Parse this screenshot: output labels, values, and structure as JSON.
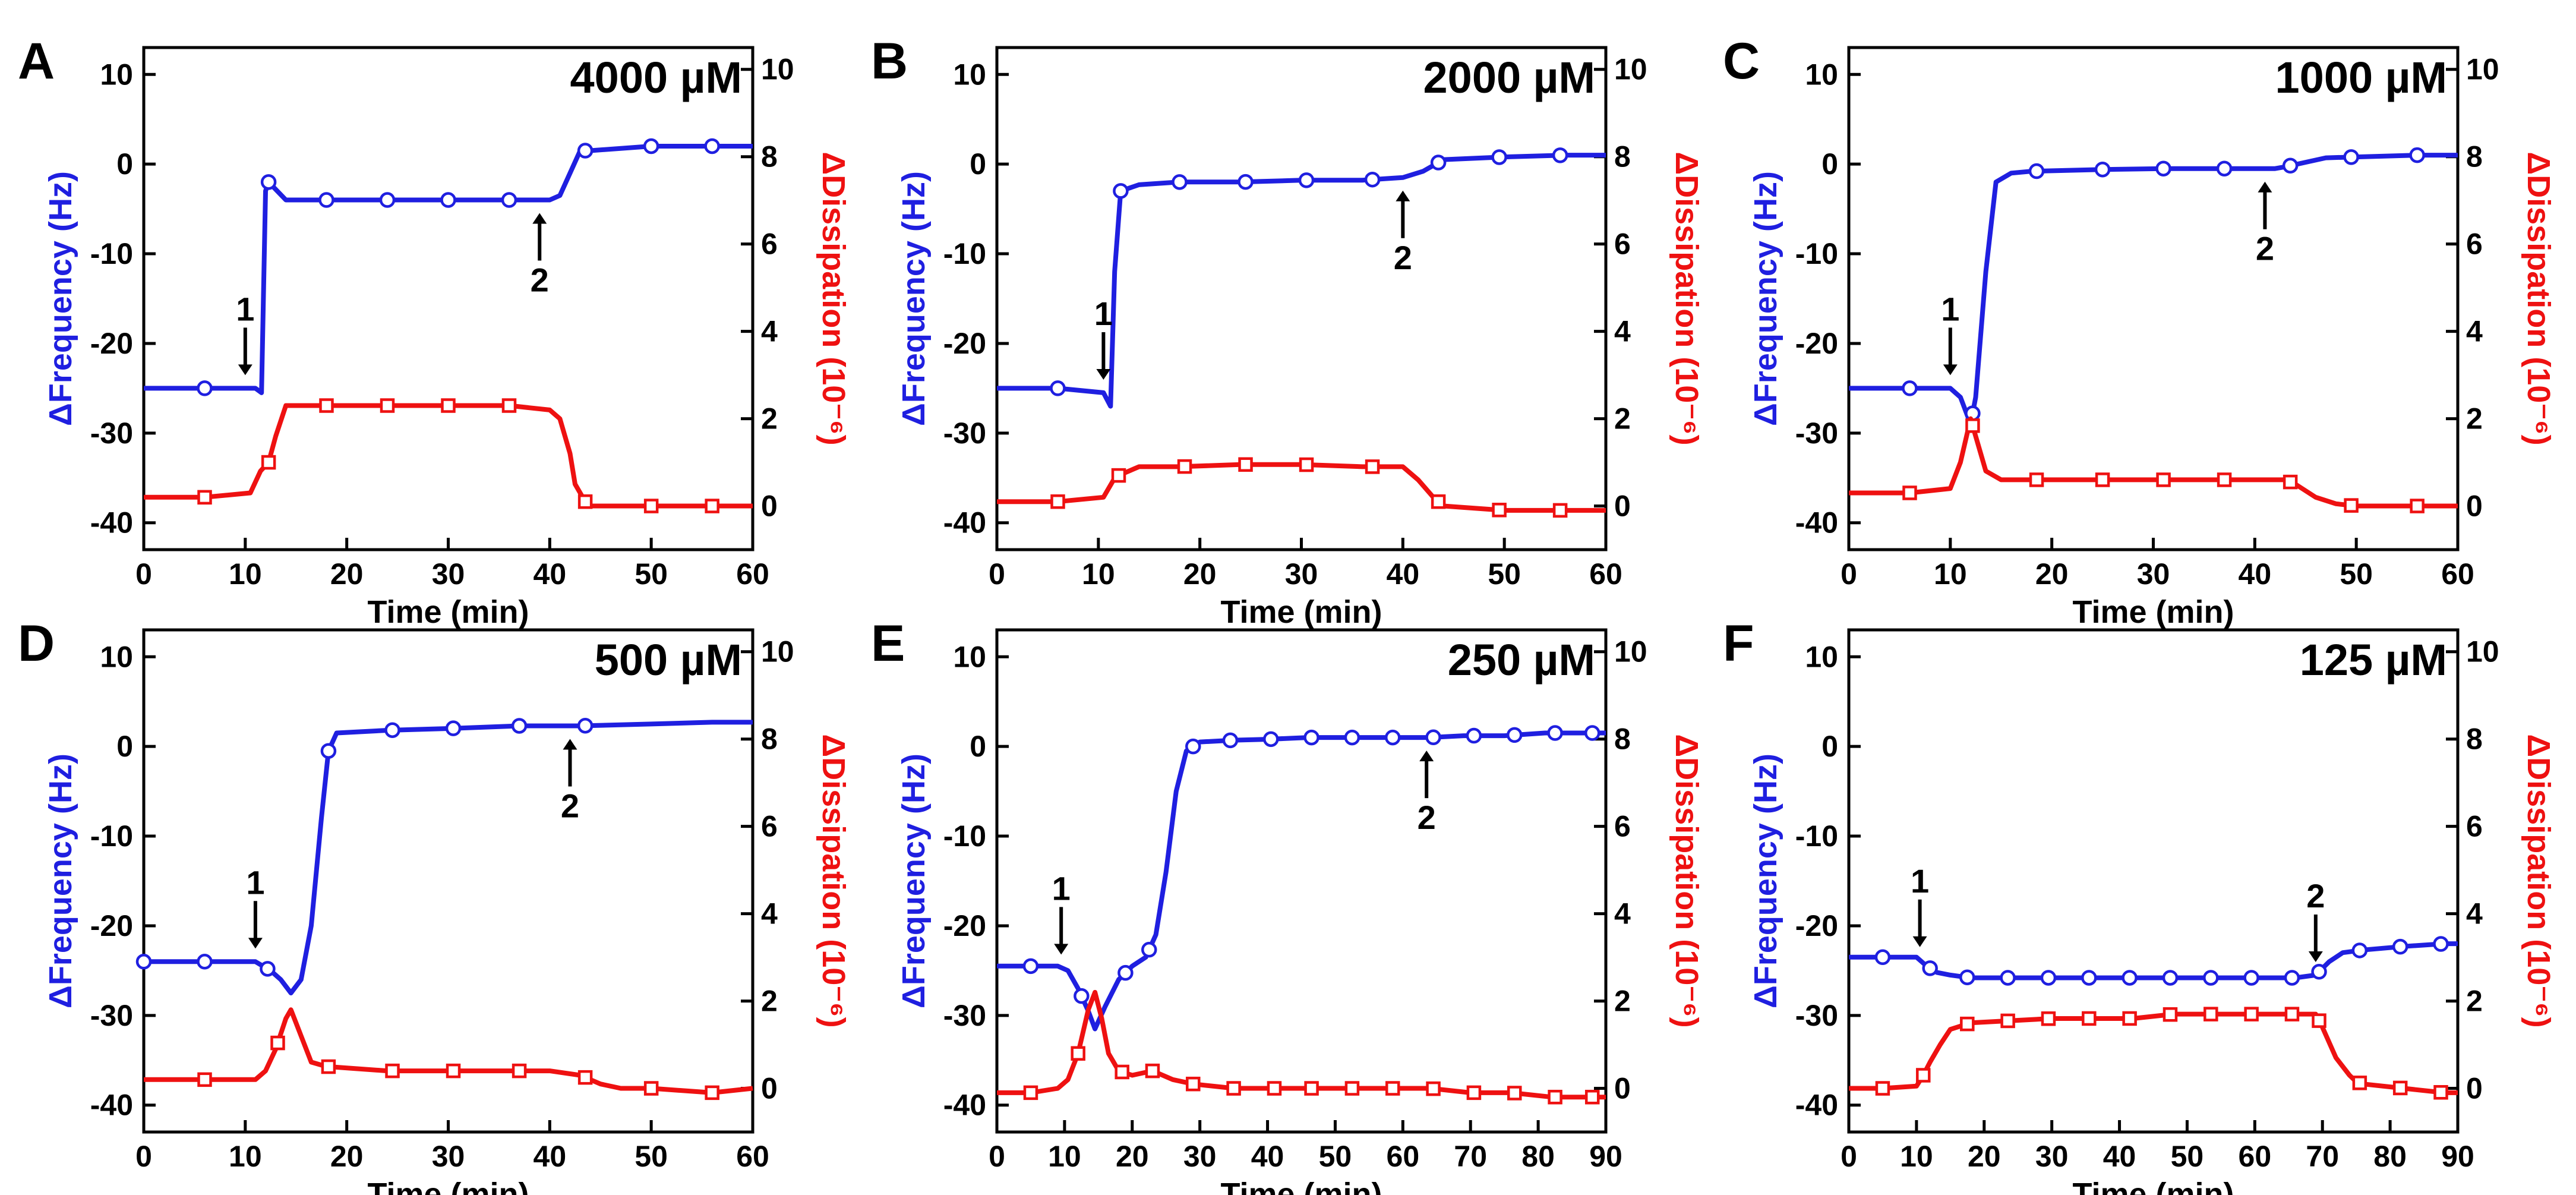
{
  "figure": {
    "colors": {
      "frequency": "#1f1fe0",
      "dissipation": "#ee1111",
      "axis": "#000000",
      "arrow": "#000000"
    }
  },
  "chart_data": [
    {
      "panel": "A",
      "type": "line",
      "concentration": "4000 µM",
      "xlabel": "Time (min)",
      "ylabel_left": "ΔFrequency (Hz)",
      "ylabel_right": "ΔDissipation (10⁻⁶)",
      "xlim": [
        0,
        60
      ],
      "ylim_left": [
        -43,
        13
      ],
      "ylim_right": [
        -1,
        10.5
      ],
      "xticks": [
        0,
        10,
        20,
        30,
        40,
        50,
        60
      ],
      "yticks_left": [
        -40,
        -30,
        -20,
        -10,
        0,
        10
      ],
      "yticks_right": [
        0,
        2,
        4,
        6,
        8,
        10
      ],
      "series": [
        {
          "name": "ΔFrequency",
          "axis": "left",
          "marker": "circle",
          "x": [
            0,
            6,
            11,
            11.6,
            12,
            12.3,
            14,
            18,
            24,
            30,
            36,
            38,
            40,
            41,
            42,
            43,
            44,
            50,
            56,
            60
          ],
          "y": [
            -25,
            -25,
            -25,
            -25.5,
            -3,
            -2,
            -4,
            -4,
            -4,
            -4,
            -4,
            -4,
            -4,
            -3.5,
            -1,
            1.5,
            1.5,
            2,
            2,
            2
          ],
          "markers_x": [
            6,
            12.3,
            18,
            24,
            30,
            36,
            43.5,
            50,
            56
          ]
        },
        {
          "name": "ΔDissipation",
          "axis": "right",
          "marker": "square",
          "x": [
            0,
            6,
            10.5,
            11.5,
            12.3,
            13,
            14,
            18,
            24,
            30,
            36,
            40,
            41,
            42,
            42.5,
            43.5,
            44,
            50,
            56,
            60
          ],
          "y": [
            0.2,
            0.2,
            0.3,
            0.8,
            1.0,
            1.6,
            2.3,
            2.3,
            2.3,
            2.3,
            2.3,
            2.2,
            2.0,
            1.2,
            0.5,
            0.1,
            0,
            0,
            0,
            0
          ],
          "markers_x": [
            6,
            12.3,
            18,
            24,
            30,
            36,
            43.5,
            50,
            56
          ]
        }
      ],
      "annotations": [
        {
          "text": "1",
          "x": 10,
          "direction": "down"
        },
        {
          "text": "2",
          "x": 39,
          "direction": "up"
        }
      ]
    },
    {
      "panel": "B",
      "type": "line",
      "concentration": "2000 µM",
      "xlabel": "Time (min)",
      "ylabel_left": "ΔFrequency (Hz)",
      "ylabel_right": "ΔDissipation (10⁻⁶)",
      "xlim": [
        0,
        60
      ],
      "ylim_left": [
        -43,
        13
      ],
      "ylim_right": [
        -1,
        10.5
      ],
      "xticks": [
        0,
        10,
        20,
        30,
        40,
        50,
        60
      ],
      "yticks_left": [
        -40,
        -30,
        -20,
        -10,
        0,
        10
      ],
      "yticks_right": [
        0,
        2,
        4,
        6,
        8,
        10
      ],
      "series": [
        {
          "name": "ΔFrequency",
          "axis": "left",
          "marker": "circle",
          "x": [
            0,
            6,
            10.5,
            11.2,
            11.6,
            12.2,
            14,
            18,
            24,
            30,
            36,
            40,
            42,
            44,
            50,
            56,
            60
          ],
          "y": [
            -25,
            -25,
            -25.5,
            -27,
            -12,
            -3,
            -2.3,
            -2,
            -2,
            -1.8,
            -1.8,
            -1.5,
            -0.8,
            0.5,
            0.8,
            1,
            1
          ],
          "markers_x": [
            6,
            12.2,
            18,
            24.5,
            30.5,
            37,
            43.5,
            49.5,
            55.5
          ]
        },
        {
          "name": "ΔDissipation",
          "axis": "right",
          "marker": "square",
          "x": [
            0,
            6,
            10.5,
            11.5,
            12,
            14,
            18,
            24,
            30,
            36,
            40,
            41.5,
            43,
            44,
            50,
            56,
            60
          ],
          "y": [
            0.1,
            0.1,
            0.2,
            0.6,
            0.7,
            0.9,
            0.9,
            0.95,
            0.95,
            0.9,
            0.9,
            0.6,
            0.2,
            0,
            -0.1,
            -0.1,
            -0.1
          ],
          "markers_x": [
            6,
            12,
            18.5,
            24.5,
            30.5,
            37,
            43.5,
            49.5,
            55.5
          ]
        }
      ],
      "annotations": [
        {
          "text": "1",
          "x": 10.5,
          "direction": "down"
        },
        {
          "text": "2",
          "x": 40,
          "direction": "up"
        }
      ]
    },
    {
      "panel": "C",
      "type": "line",
      "concentration": "1000 µM",
      "xlabel": "Time (min)",
      "ylabel_left": "ΔFrequency (Hz)",
      "ylabel_right": "ΔDissipation (10⁻⁶)",
      "xlim": [
        0,
        60
      ],
      "ylim_left": [
        -43,
        13
      ],
      "ylim_right": [
        -1,
        10.5
      ],
      "xticks": [
        0,
        10,
        20,
        30,
        40,
        50,
        60
      ],
      "yticks_left": [
        -40,
        -30,
        -20,
        -10,
        0,
        10
      ],
      "yticks_right": [
        0,
        2,
        4,
        6,
        8,
        10
      ],
      "series": [
        {
          "name": "ΔFrequency",
          "axis": "left",
          "marker": "circle",
          "x": [
            0,
            6,
            10,
            11,
            12,
            12.5,
            13.5,
            14.5,
            16,
            18,
            25,
            31,
            37,
            42,
            43,
            45,
            47,
            50,
            56,
            60
          ],
          "y": [
            -25,
            -25,
            -25,
            -26,
            -29,
            -26,
            -12,
            -2,
            -1,
            -0.8,
            -0.6,
            -0.5,
            -0.5,
            -0.5,
            -0.3,
            0.2,
            0.7,
            0.8,
            1,
            1
          ],
          "markers_x": [
            6,
            12.2,
            18.5,
            25,
            31,
            37,
            43.5,
            49.5,
            56
          ]
        },
        {
          "name": "ΔDissipation",
          "axis": "right",
          "marker": "square",
          "x": [
            0,
            6,
            10,
            11,
            12,
            12.5,
            13.5,
            15,
            18,
            25,
            31,
            37,
            43,
            44,
            46,
            48,
            50,
            56,
            60
          ],
          "y": [
            0.3,
            0.3,
            0.4,
            1.0,
            2.0,
            1.6,
            0.8,
            0.6,
            0.6,
            0.6,
            0.6,
            0.6,
            0.6,
            0.5,
            0.2,
            0.05,
            0,
            0,
            0
          ],
          "markers_x": [
            6,
            12.2,
            18.5,
            25,
            31,
            37,
            43.5,
            49.5,
            56
          ]
        }
      ],
      "annotations": [
        {
          "text": "1",
          "x": 10,
          "direction": "down"
        },
        {
          "text": "2",
          "x": 41,
          "direction": "up"
        }
      ]
    },
    {
      "panel": "D",
      "type": "line",
      "concentration": "500 µM",
      "xlabel": "Time (min)",
      "ylabel_left": "ΔFrequency (Hz)",
      "ylabel_right": "ΔDissipation (10⁻⁶)",
      "xlim": [
        0,
        60
      ],
      "ylim_left": [
        -43,
        13
      ],
      "ylim_right": [
        -1,
        10.5
      ],
      "xticks": [
        0,
        10,
        20,
        30,
        40,
        50,
        60
      ],
      "yticks_left": [
        -40,
        -30,
        -20,
        -10,
        0,
        10
      ],
      "yticks_right": [
        0,
        2,
        4,
        6,
        8,
        10
      ],
      "series": [
        {
          "name": "ΔFrequency",
          "axis": "left",
          "marker": "circle",
          "x": [
            0,
            6,
            11,
            12.5,
            13.5,
            14.5,
            15.5,
            16.5,
            17.5,
            18.2,
            19,
            24,
            30,
            37,
            43,
            50,
            56,
            60
          ],
          "y": [
            -24,
            -24,
            -24,
            -25,
            -26,
            -27.5,
            -26,
            -20,
            -8,
            -0.5,
            1.5,
            1.8,
            2,
            2.3,
            2.3,
            2.5,
            2.7,
            2.7
          ],
          "markers_x": [
            0,
            6,
            12.2,
            18.2,
            24.5,
            30.5,
            37,
            43.5
          ]
        },
        {
          "name": "ΔDissipation",
          "axis": "right",
          "marker": "square",
          "x": [
            0,
            6,
            11,
            12,
            13,
            14,
            14.5,
            15.5,
            16.5,
            18,
            24,
            30,
            37,
            40,
            43,
            45,
            47,
            50,
            56,
            60
          ],
          "y": [
            0.2,
            0.2,
            0.2,
            0.4,
            0.9,
            1.6,
            1.8,
            1.2,
            0.6,
            0.5,
            0.4,
            0.4,
            0.4,
            0.4,
            0.3,
            0.1,
            0,
            0,
            -0.1,
            0
          ],
          "markers_x": [
            6,
            13.2,
            18.2,
            24.5,
            30.5,
            37,
            43.5,
            50,
            56
          ]
        }
      ],
      "annotations": [
        {
          "text": "1",
          "x": 11,
          "direction": "down"
        },
        {
          "text": "2",
          "x": 42,
          "direction": "up"
        }
      ]
    },
    {
      "panel": "E",
      "type": "line",
      "concentration": "250 µM",
      "xlabel": "Time (min)",
      "ylabel_left": "ΔFrequency (Hz)",
      "ylabel_right": "ΔDissipation (10⁻⁶)",
      "xlim": [
        0,
        90
      ],
      "ylim_left": [
        -43,
        13
      ],
      "ylim_right": [
        -1,
        10.5
      ],
      "xticks": [
        0,
        10,
        20,
        30,
        40,
        50,
        60,
        70,
        80,
        90
      ],
      "yticks_left": [
        -40,
        -30,
        -20,
        -10,
        0,
        10
      ],
      "yticks_right": [
        0,
        2,
        4,
        6,
        8,
        10
      ],
      "series": [
        {
          "name": "ΔFrequency",
          "axis": "left",
          "marker": "circle",
          "x": [
            0,
            5,
            9,
            10.5,
            12,
            13.5,
            14.5,
            16,
            18,
            20,
            22,
            23.5,
            25,
            26.5,
            28,
            30,
            35,
            40,
            46,
            52,
            57,
            64,
            69,
            75,
            81,
            87,
            90
          ],
          "y": [
            -24.5,
            -24.5,
            -24.5,
            -25,
            -27,
            -29.5,
            -31.5,
            -29,
            -26,
            -24.5,
            -23.5,
            -21,
            -14,
            -5,
            -0.5,
            0.5,
            0.7,
            0.8,
            1,
            1,
            1,
            1,
            1.2,
            1.2,
            1.5,
            1.5,
            1.5
          ],
          "markers_x": [
            5,
            12.5,
            19,
            22.5,
            29,
            34.5,
            40.5,
            46.5,
            52.5,
            58.5,
            64.5,
            70.5,
            76.5,
            82.5,
            88
          ]
        },
        {
          "name": "ΔDissipation",
          "axis": "right",
          "marker": "square",
          "x": [
            0,
            5,
            9,
            10.5,
            12,
            13.5,
            14.5,
            15.5,
            16.5,
            18,
            20,
            23,
            26,
            29,
            35,
            46,
            52,
            58,
            64,
            70,
            76,
            82,
            88,
            90
          ],
          "y": [
            -0.1,
            -0.1,
            0,
            0.2,
            0.8,
            1.8,
            2.2,
            1.6,
            0.8,
            0.4,
            0.3,
            0.4,
            0.2,
            0.1,
            0,
            0,
            0,
            0,
            0,
            -0.1,
            -0.1,
            -0.2,
            -0.2,
            -0.2
          ],
          "markers_x": [
            5,
            12,
            18.5,
            23,
            29,
            35,
            41,
            46.5,
            52.5,
            58.5,
            64.5,
            70.5,
            76.5,
            82.5,
            88
          ]
        }
      ],
      "annotations": [
        {
          "text": "1",
          "x": 9.5,
          "direction": "down"
        },
        {
          "text": "2",
          "x": 63.5,
          "direction": "up"
        }
      ]
    },
    {
      "panel": "F",
      "type": "line",
      "concentration": "125 µM",
      "xlabel": "Time (min)",
      "ylabel_left": "ΔFrequency (Hz)",
      "ylabel_right": "ΔDissipation (10⁻⁶)",
      "xlim": [
        0,
        90
      ],
      "ylim_left": [
        -43,
        13
      ],
      "ylim_right": [
        -1,
        10.5
      ],
      "xticks": [
        0,
        10,
        20,
        30,
        40,
        50,
        60,
        70,
        80,
        90
      ],
      "yticks_left": [
        -40,
        -30,
        -20,
        -10,
        0,
        10
      ],
      "yticks_right": [
        0,
        2,
        4,
        6,
        8,
        10
      ],
      "series": [
        {
          "name": "ΔFrequency",
          "axis": "left",
          "marker": "circle",
          "x": [
            0,
            5,
            10,
            11.5,
            13,
            15,
            18,
            24,
            30,
            36,
            42,
            48,
            54,
            60,
            66,
            69,
            71,
            73,
            76,
            82,
            88,
            90
          ],
          "y": [
            -23.5,
            -23.5,
            -23.5,
            -24.5,
            -25.2,
            -25.5,
            -25.8,
            -25.8,
            -25.8,
            -25.8,
            -25.8,
            -25.8,
            -25.8,
            -25.8,
            -25.8,
            -25.5,
            -24,
            -23,
            -22.7,
            -22.3,
            -22,
            -22
          ],
          "markers_x": [
            5,
            12,
            17.5,
            23.5,
            29.5,
            35.5,
            41.5,
            47.5,
            53.5,
            59.5,
            65.5,
            69.5,
            75.5,
            81.5,
            87.5
          ]
        },
        {
          "name": "ΔDissipation",
          "axis": "right",
          "marker": "square",
          "x": [
            0,
            5,
            10,
            11,
            12,
            13.5,
            15,
            18,
            24,
            30,
            36,
            42,
            48,
            54,
            60,
            66,
            69,
            70,
            72,
            74,
            75,
            76,
            82,
            88,
            90
          ],
          "y": [
            0,
            0,
            0.05,
            0.3,
            0.6,
            1.0,
            1.35,
            1.5,
            1.55,
            1.6,
            1.6,
            1.6,
            1.7,
            1.7,
            1.7,
            1.7,
            1.7,
            1.4,
            0.7,
            0.3,
            0.15,
            0.1,
            0,
            -0.1,
            -0.1
          ],
          "markers_x": [
            5,
            11,
            17.5,
            23.5,
            29.5,
            35.5,
            41.5,
            47.5,
            53.5,
            59.5,
            65.5,
            69.5,
            75.5,
            81.5,
            87.5
          ]
        }
      ],
      "annotations": [
        {
          "text": "1",
          "x": 10.5,
          "direction": "down"
        },
        {
          "text": "2",
          "x": 69,
          "direction": "down"
        }
      ]
    }
  ]
}
